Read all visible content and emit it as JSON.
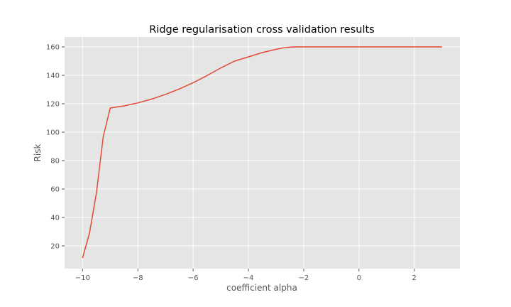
{
  "chart_data": {
    "type": "line",
    "title": "Ridge regularisation cross validation results",
    "xlabel": "coefficient alpha",
    "ylabel": "Risk",
    "xlim": [
      -10.65,
      3.65
    ],
    "ylim": [
      4,
      167
    ],
    "xticks": [
      -10,
      -8,
      -6,
      -4,
      -2,
      0,
      2
    ],
    "yticks": [
      20,
      40,
      60,
      80,
      100,
      120,
      140,
      160
    ],
    "grid": true,
    "colors": {
      "line": "#e24a33",
      "plot_bg": "#e5e5e5",
      "grid": "#ffffff"
    },
    "series": [
      {
        "x": [
          -10,
          -9.75,
          -9.5,
          -9.25,
          -9,
          -8.5,
          -8,
          -7.5,
          -7,
          -6.5,
          -6,
          -5.5,
          -5,
          -4.5,
          -4,
          -3.5,
          -3,
          -2.75,
          -2.5,
          -2.25,
          -2,
          -1.5,
          -1,
          0,
          1,
          2,
          3
        ],
        "y": [
          11.5,
          29,
          57,
          97,
          117,
          118.5,
          120.6,
          123.3,
          126.6,
          130.4,
          134.8,
          139.8,
          145.2,
          150,
          153,
          156,
          158.3,
          159.3,
          159.8,
          160,
          160,
          160,
          160,
          160,
          160,
          160,
          160
        ]
      }
    ]
  }
}
